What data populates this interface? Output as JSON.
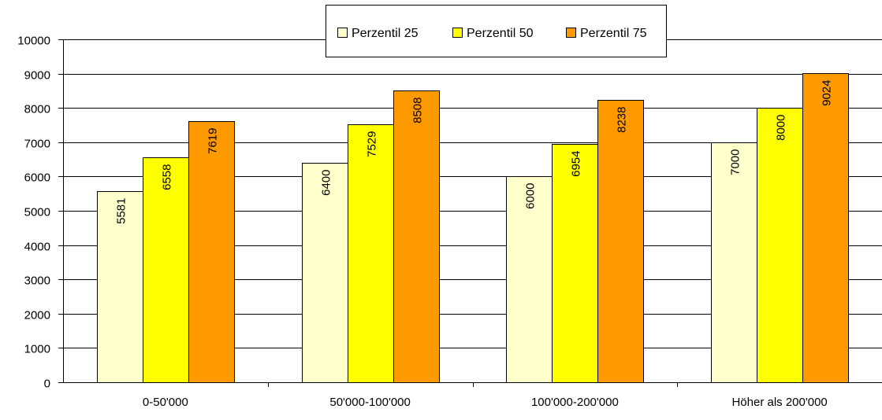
{
  "chart_data": {
    "type": "bar",
    "title": "",
    "xlabel": "",
    "ylabel": "",
    "categories": [
      "0-50'000",
      "50'000-100'000",
      "100'000-200'000",
      "Höher als 200'000"
    ],
    "series": [
      {
        "name": "Perzentil 25",
        "color": "#FFFFCC",
        "values": [
          5581,
          6400,
          6000,
          7000
        ]
      },
      {
        "name": "Perzentil 50",
        "color": "#FFFF00",
        "values": [
          6558,
          7529,
          6954,
          8000
        ]
      },
      {
        "name": "Perzentil 75",
        "color": "#FF9900",
        "values": [
          7619,
          8508,
          8238,
          9024
        ]
      }
    ],
    "ylim": [
      0,
      10000
    ],
    "yticks": [
      0,
      1000,
      2000,
      3000,
      4000,
      5000,
      6000,
      7000,
      8000,
      9000,
      10000
    ],
    "grid": true,
    "legend_position": "top-center",
    "data_labels": "inside-top-rotated"
  }
}
